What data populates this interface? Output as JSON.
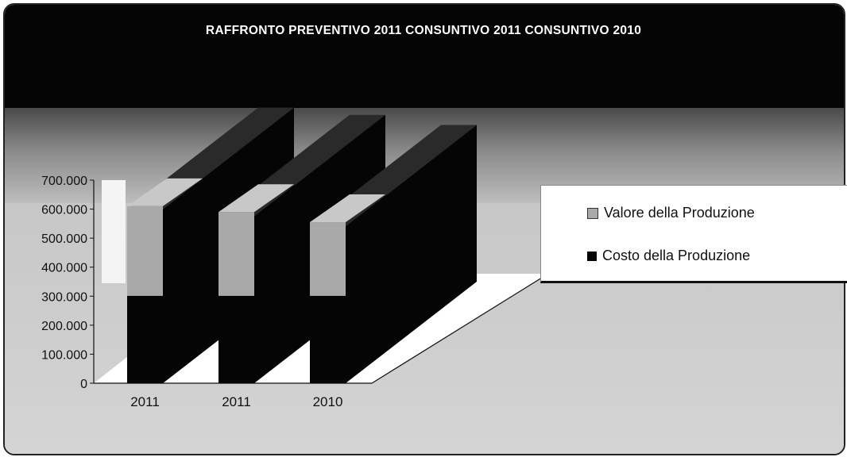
{
  "chart_data": {
    "type": "bar",
    "title": "RAFFRONTO PREVENTIVO 2011 CONSUNTIVO 2011 CONSUNTIVO 2010",
    "categories": [
      "2011",
      "2011",
      "2010"
    ],
    "series": [
      {
        "name": "Valore della Produzione",
        "values": [
          610000,
          590000,
          555000
        ],
        "color": "#a9a9a9"
      },
      {
        "name": "Costo della Produzione",
        "values": [
          600000,
          575000,
          540000
        ],
        "color": "#050505"
      }
    ],
    "yticks": [
      "0",
      "100.000",
      "200.000",
      "300.000",
      "400.000",
      "500.000",
      "600.000",
      "700.000"
    ],
    "ylim": [
      0,
      700000
    ],
    "legend_position": "right",
    "xlabel": "",
    "ylabel": "",
    "style": "3d-column"
  }
}
